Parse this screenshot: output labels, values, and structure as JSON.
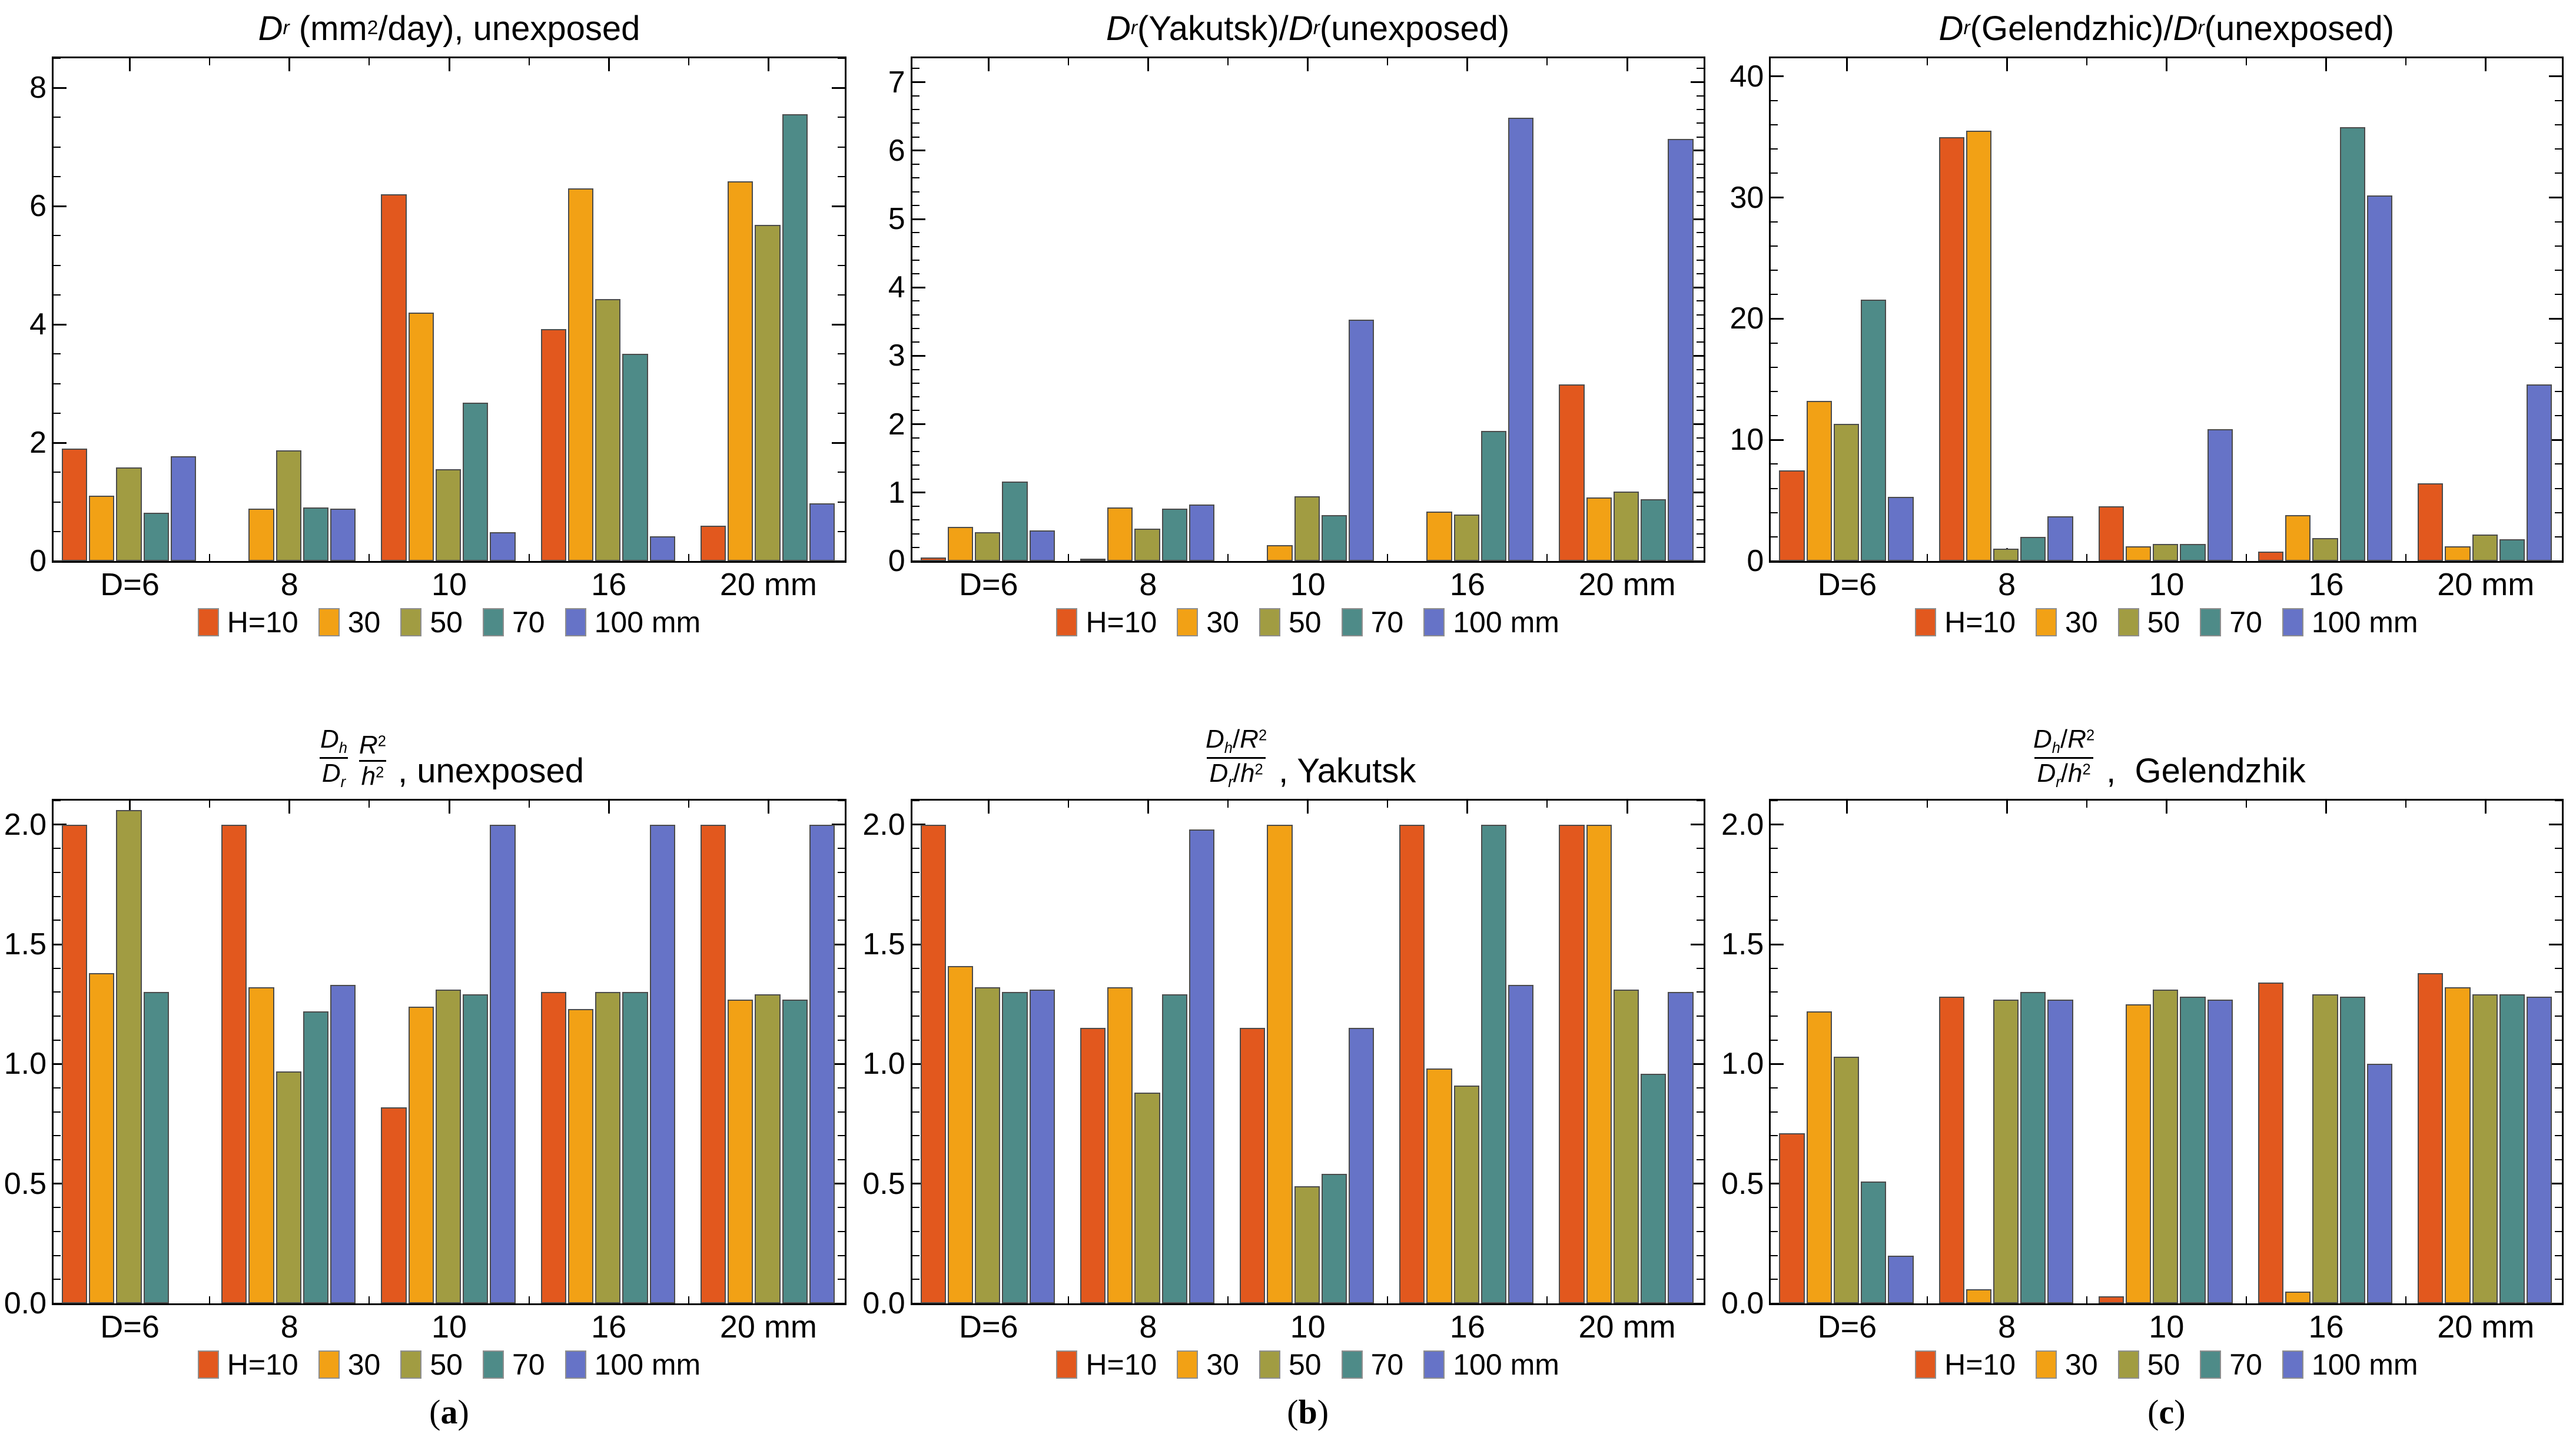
{
  "figure": {
    "background": "#FFFFFF",
    "frame_color": "#000000",
    "bar_edge_color": "#4C4C4C"
  },
  "legend": {
    "position": "below",
    "items": [
      {
        "label": "H=10",
        "color": "#E2581E"
      },
      {
        "label": "30",
        "color": "#F2A115"
      },
      {
        "label": "50",
        "color": "#A19C42"
      },
      {
        "label": "70",
        "color": "#4E8B88"
      },
      {
        "label": "100 mm",
        "color": "#6673C7"
      }
    ]
  },
  "chart_data": [
    {
      "type": "bar",
      "panel": "top-left",
      "title": {
        "layout": "inline",
        "segments": [
          [
            "D",
            "i"
          ],
          [
            "r",
            "subi"
          ],
          [
            " (mm",
            ""
          ],
          [
            "2",
            "sup"
          ],
          [
            "/day), unexposed",
            ""
          ]
        ]
      },
      "categories": [
        "D=6",
        "8",
        "10",
        "16",
        "20 mm"
      ],
      "series": [
        {
          "name": "H=10",
          "color": "#E2581E",
          "values": [
            1.9,
            0,
            6.2,
            3.92,
            0.6
          ]
        },
        {
          "name": "30",
          "color": "#F2A115",
          "values": [
            1.1,
            0.89,
            4.2,
            6.3,
            6.42
          ]
        },
        {
          "name": "50",
          "color": "#A19C42",
          "values": [
            1.58,
            1.87,
            1.55,
            4.43,
            5.68
          ]
        },
        {
          "name": "70",
          "color": "#4E8B88",
          "values": [
            0.82,
            0.91,
            2.68,
            3.5,
            7.55
          ]
        },
        {
          "name": "100 mm",
          "color": "#6673C7",
          "values": [
            1.77,
            0.89,
            0.49,
            0.42,
            0.98
          ]
        }
      ],
      "ylim": [
        0,
        8.5
      ],
      "yticks": {
        "values": [
          0,
          2,
          4,
          6,
          8
        ],
        "labels": [
          "0",
          "2",
          "4",
          "6",
          "8"
        ]
      },
      "minor_step": 0.5,
      "grid": false
    },
    {
      "type": "bar",
      "panel": "top-middle",
      "title": {
        "layout": "inline",
        "segments": [
          [
            "D",
            "i"
          ],
          [
            "r",
            "subi"
          ],
          [
            "(Yakutsk)/",
            ""
          ],
          [
            "D",
            "i"
          ],
          [
            "r",
            "subi"
          ],
          [
            "(unexposed)",
            ""
          ]
        ]
      },
      "categories": [
        "D=6",
        "8",
        "10",
        "16",
        "20 mm"
      ],
      "series": [
        {
          "name": "H=10",
          "color": "#E2581E",
          "values": [
            0.05,
            0.03,
            0,
            0,
            2.58
          ]
        },
        {
          "name": "30",
          "color": "#F2A115",
          "values": [
            0.5,
            0.78,
            0.23,
            0.72,
            0.93
          ]
        },
        {
          "name": "50",
          "color": "#A19C42",
          "values": [
            0.42,
            0.47,
            0.95,
            0.68,
            1.02
          ]
        },
        {
          "name": "70",
          "color": "#4E8B88",
          "values": [
            1.16,
            0.77,
            0.67,
            1.9,
            0.9
          ]
        },
        {
          "name": "100 mm",
          "color": "#6673C7",
          "values": [
            0.45,
            0.83,
            3.53,
            6.48,
            6.17
          ]
        }
      ],
      "ylim": [
        0,
        7.35
      ],
      "yticks": {
        "values": [
          0,
          1,
          2,
          3,
          4,
          5,
          6,
          7
        ],
        "labels": [
          "0",
          "1",
          "2",
          "3",
          "4",
          "5",
          "6",
          "7"
        ]
      },
      "minor_step": 0.2,
      "grid": false
    },
    {
      "type": "bar",
      "panel": "top-right",
      "title": {
        "layout": "inline",
        "segments": [
          [
            "D",
            "i"
          ],
          [
            "r",
            "subi"
          ],
          [
            "(Gelendzhic)/",
            ""
          ],
          [
            "D",
            "i"
          ],
          [
            "r",
            "subi"
          ],
          [
            "(unexposed)",
            ""
          ]
        ]
      },
      "categories": [
        "D=6",
        "8",
        "10",
        "16",
        "20 mm"
      ],
      "series": [
        {
          "name": "H=10",
          "color": "#E2581E",
          "values": [
            7.5,
            35.0,
            4.5,
            0.8,
            6.4
          ]
        },
        {
          "name": "30",
          "color": "#F2A115",
          "values": [
            13.2,
            35.5,
            1.2,
            3.8,
            1.2
          ]
        },
        {
          "name": "50",
          "color": "#A19C42",
          "values": [
            11.3,
            1.0,
            1.4,
            1.9,
            2.2
          ]
        },
        {
          "name": "70",
          "color": "#4E8B88",
          "values": [
            21.6,
            2.0,
            1.4,
            35.8,
            1.8
          ]
        },
        {
          "name": "100 mm",
          "color": "#6673C7",
          "values": [
            5.3,
            3.7,
            10.9,
            30.2,
            14.6
          ]
        }
      ],
      "ylim": [
        0,
        41.5
      ],
      "yticks": {
        "values": [
          0,
          10,
          20,
          30,
          40
        ],
        "labels": [
          "0",
          "10",
          "20",
          "30",
          "40"
        ]
      },
      "minor_step": 2,
      "grid": false
    },
    {
      "type": "bar",
      "panel": "bottom-left",
      "title": {
        "layout": "prodfrac",
        "frac1": {
          "num": [
            [
              "D",
              "i"
            ],
            [
              "h",
              "subi"
            ]
          ],
          "den": [
            [
              "D",
              "i"
            ],
            [
              "r",
              "subi"
            ]
          ]
        },
        "frac2": {
          "num": [
            [
              "R",
              "i"
            ],
            [
              "2",
              "sup"
            ]
          ],
          "den": [
            [
              "h",
              "i"
            ],
            [
              "2",
              "sup"
            ]
          ]
        },
        "suffix": [
          [
            ", unexposed",
            ""
          ]
        ]
      },
      "caption": {
        "pre": "(",
        "letter": "a",
        "post": ")"
      },
      "categories": [
        "D=6",
        "8",
        "10",
        "16",
        "20 mm"
      ],
      "series": [
        {
          "name": "H=10",
          "color": "#E2581E",
          "values": [
            2.0,
            2.0,
            0.82,
            1.3,
            2.0
          ]
        },
        {
          "name": "30",
          "color": "#F2A115",
          "values": [
            1.38,
            1.32,
            1.24,
            1.23,
            1.27
          ]
        },
        {
          "name": "50",
          "color": "#A19C42",
          "values": [
            2.06,
            0.97,
            1.31,
            1.3,
            1.29
          ]
        },
        {
          "name": "70",
          "color": "#4E8B88",
          "values": [
            1.3,
            1.22,
            1.29,
            1.3,
            1.27
          ]
        },
        {
          "name": "100 mm",
          "color": "#6673C7",
          "values": [
            0,
            1.33,
            2.0,
            2.0,
            2.0
          ]
        }
      ],
      "ylim": [
        0,
        2.1
      ],
      "yticks": {
        "values": [
          0,
          0.5,
          1,
          1.5,
          2
        ],
        "labels": [
          "0.0",
          "0.5",
          "1.0",
          "1.5",
          "2.0"
        ]
      },
      "minor_step": 0.1,
      "grid": false
    },
    {
      "type": "bar",
      "panel": "bottom-middle",
      "title": {
        "layout": "bigfrac",
        "num": [
          [
            "D",
            "i"
          ],
          [
            "h",
            "subi"
          ],
          [
            "/",
            ""
          ],
          [
            "R",
            "i"
          ],
          [
            "2",
            "sup"
          ]
        ],
        "den": [
          [
            "D",
            "i"
          ],
          [
            "r",
            "subi"
          ],
          [
            "/",
            ""
          ],
          [
            "h",
            "i"
          ],
          [
            "2",
            "sup"
          ]
        ],
        "suffix": [
          [
            ", Yakutsk",
            ""
          ]
        ]
      },
      "caption": {
        "pre": "(",
        "letter": "b",
        "post": ")"
      },
      "categories": [
        "D=6",
        "8",
        "10",
        "16",
        "20 mm"
      ],
      "series": [
        {
          "name": "H=10",
          "color": "#E2581E",
          "values": [
            2.0,
            1.15,
            1.15,
            2.0,
            2.0
          ]
        },
        {
          "name": "30",
          "color": "#F2A115",
          "values": [
            1.41,
            1.32,
            2.0,
            0.98,
            2.0
          ]
        },
        {
          "name": "50",
          "color": "#A19C42",
          "values": [
            1.32,
            0.88,
            0.49,
            0.91,
            1.31
          ]
        },
        {
          "name": "70",
          "color": "#4E8B88",
          "values": [
            1.3,
            1.29,
            0.54,
            2.0,
            0.96
          ]
        },
        {
          "name": "100 mm",
          "color": "#6673C7",
          "values": [
            1.31,
            1.98,
            1.15,
            1.33,
            1.3
          ]
        }
      ],
      "ylim": [
        0,
        2.1
      ],
      "yticks": {
        "values": [
          0,
          0.5,
          1,
          1.5,
          2
        ],
        "labels": [
          "0.0",
          "0.5",
          "1.0",
          "1.5",
          "2.0"
        ]
      },
      "minor_step": 0.1,
      "grid": false
    },
    {
      "type": "bar",
      "panel": "bottom-right",
      "title": {
        "layout": "bigfrac",
        "num": [
          [
            "D",
            "i"
          ],
          [
            "h",
            "subi"
          ],
          [
            "/",
            ""
          ],
          [
            "R",
            "i"
          ],
          [
            "2",
            "sup"
          ]
        ],
        "den": [
          [
            "D",
            "i"
          ],
          [
            "r",
            "subi"
          ],
          [
            "/",
            ""
          ],
          [
            "h",
            "i"
          ],
          [
            "2",
            "sup"
          ]
        ],
        "suffix": [
          [
            ",  Gelendzhik",
            ""
          ]
        ]
      },
      "caption": {
        "pre": "(",
        "letter": "c",
        "post": ")"
      },
      "categories": [
        "D=6",
        "8",
        "10",
        "16",
        "20 mm"
      ],
      "series": [
        {
          "name": "H=10",
          "color": "#E2581E",
          "values": [
            0.71,
            1.28,
            0.03,
            1.34,
            1.38
          ]
        },
        {
          "name": "30",
          "color": "#F2A115",
          "values": [
            1.22,
            0.06,
            1.25,
            0.05,
            1.32
          ]
        },
        {
          "name": "50",
          "color": "#A19C42",
          "values": [
            1.03,
            1.27,
            1.31,
            1.29,
            1.29
          ]
        },
        {
          "name": "70",
          "color": "#4E8B88",
          "values": [
            0.51,
            1.3,
            1.28,
            1.28,
            1.29
          ]
        },
        {
          "name": "100 mm",
          "color": "#6673C7",
          "values": [
            0.2,
            1.27,
            1.27,
            1.0,
            1.28
          ]
        }
      ],
      "ylim": [
        0,
        2.1
      ],
      "yticks": {
        "values": [
          0,
          0.5,
          1,
          1.5,
          2
        ],
        "labels": [
          "0.0",
          "0.5",
          "1.0",
          "1.5",
          "2.0"
        ]
      },
      "minor_step": 0.1,
      "grid": false
    }
  ]
}
